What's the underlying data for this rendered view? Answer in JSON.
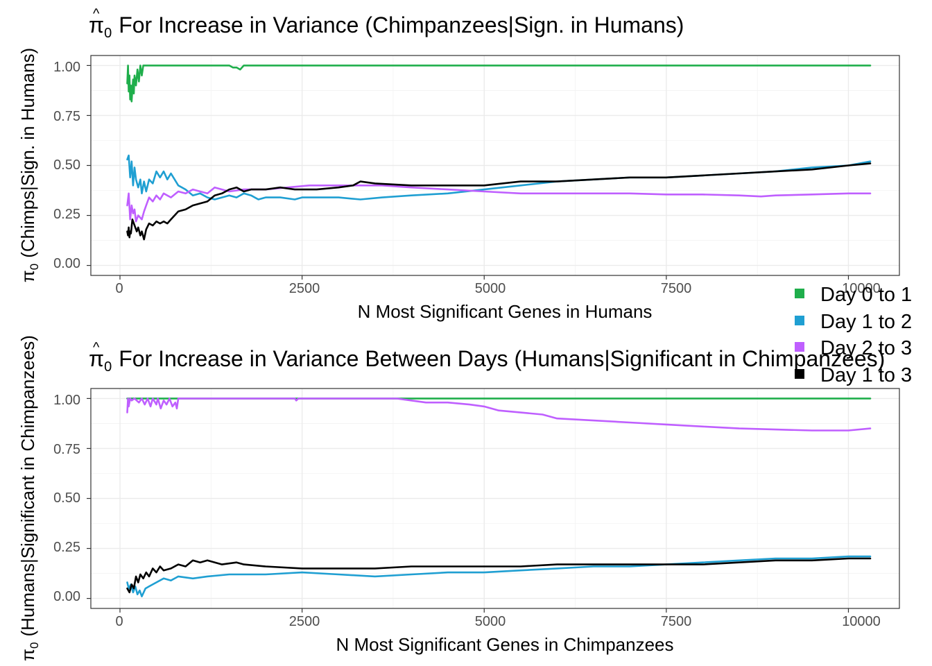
{
  "colors": {
    "day0to1": "#1fae4b",
    "day1to2": "#1f9fd2",
    "day2to3": "#bf5fff",
    "day1to3": "#000000"
  },
  "legend": [
    {
      "label": "Day 0 to 1",
      "color": "#1fae4b"
    },
    {
      "label": "Day 1 to 2",
      "color": "#1f9fd2"
    },
    {
      "label": "Day 2 to 3",
      "color": "#bf5fff"
    },
    {
      "label": "Day 1 to 3",
      "color": "#000000"
    }
  ],
  "chart_data": [
    {
      "type": "line",
      "title": {
        "hat_symbol": "π",
        "subscript": "0",
        "text": "For Increase in Variance (Chimpanzees|Sign. in Humans)"
      },
      "xlabel": "N Most Significant Genes in Humans",
      "ylabel": {
        "hat_symbol": "π",
        "subscript": "0",
        "text": "(Chimps|Sign. in Humans)"
      },
      "xlim": [
        -400,
        10700
      ],
      "ylim": [
        -0.05,
        1.05
      ],
      "xticks": [
        0,
        2500,
        5000,
        7500,
        10000
      ],
      "xtick_labels": [
        "0",
        "2500",
        "5000",
        "7500",
        "10000"
      ],
      "yticks": [
        0,
        0.25,
        0.5,
        0.75,
        1
      ],
      "ytick_labels": [
        "0.00",
        "0.25",
        "0.50",
        "0.75",
        "1.00"
      ],
      "grid": true,
      "series": [
        {
          "name": "Day 0 to 1",
          "color": "#1fae4b",
          "x": [
            100,
            110,
            120,
            130,
            140,
            150,
            160,
            170,
            180,
            190,
            200,
            220,
            240,
            260,
            280,
            300,
            320,
            1500,
            1550,
            1600,
            1650,
            1700,
            10300
          ],
          "y": [
            0.91,
            1.0,
            0.87,
            0.95,
            0.83,
            0.9,
            0.82,
            0.88,
            0.93,
            0.86,
            0.95,
            0.9,
            0.98,
            0.92,
            1.0,
            0.95,
            1.0,
            1.0,
            0.99,
            0.99,
            0.98,
            1.0,
            1.0
          ]
        },
        {
          "name": "Day 1 to 2",
          "color": "#1f9fd2",
          "x": [
            100,
            120,
            140,
            160,
            180,
            200,
            220,
            250,
            280,
            300,
            330,
            360,
            400,
            450,
            500,
            550,
            600,
            650,
            700,
            800,
            900,
            1000,
            1100,
            1200,
            1300,
            1400,
            1500,
            1600,
            1700,
            1800,
            1900,
            2000,
            2200,
            2400,
            2500,
            2700,
            3000,
            3300,
            3600,
            4000,
            4500,
            5000,
            5500,
            6000,
            6500,
            7000,
            7500,
            8000,
            8500,
            9000,
            9500,
            10000,
            10300
          ],
          "y": [
            0.53,
            0.55,
            0.44,
            0.52,
            0.4,
            0.49,
            0.43,
            0.39,
            0.43,
            0.36,
            0.42,
            0.37,
            0.43,
            0.41,
            0.47,
            0.44,
            0.47,
            0.43,
            0.46,
            0.4,
            0.38,
            0.35,
            0.36,
            0.34,
            0.33,
            0.34,
            0.35,
            0.34,
            0.36,
            0.35,
            0.33,
            0.34,
            0.34,
            0.33,
            0.34,
            0.34,
            0.34,
            0.33,
            0.34,
            0.35,
            0.36,
            0.38,
            0.4,
            0.42,
            0.43,
            0.44,
            0.44,
            0.45,
            0.46,
            0.47,
            0.49,
            0.5,
            0.52
          ]
        },
        {
          "name": "Day 2 to 3",
          "color": "#bf5fff",
          "x": [
            100,
            120,
            140,
            160,
            180,
            200,
            220,
            250,
            300,
            330,
            360,
            400,
            450,
            500,
            550,
            600,
            700,
            800,
            900,
            1000,
            1100,
            1200,
            1300,
            1400,
            1500,
            1700,
            2000,
            2300,
            2600,
            3000,
            3300,
            3600,
            4000,
            4500,
            5000,
            5500,
            6000,
            6500,
            7000,
            7500,
            8000,
            8500,
            8800,
            9000,
            9500,
            10000,
            10300
          ],
          "y": [
            0.3,
            0.36,
            0.23,
            0.3,
            0.26,
            0.28,
            0.22,
            0.25,
            0.23,
            0.27,
            0.3,
            0.34,
            0.32,
            0.35,
            0.33,
            0.36,
            0.34,
            0.37,
            0.36,
            0.38,
            0.37,
            0.36,
            0.39,
            0.38,
            0.37,
            0.38,
            0.38,
            0.39,
            0.4,
            0.4,
            0.4,
            0.4,
            0.39,
            0.38,
            0.37,
            0.36,
            0.36,
            0.36,
            0.36,
            0.355,
            0.355,
            0.35,
            0.345,
            0.35,
            0.355,
            0.36,
            0.36
          ]
        },
        {
          "name": "Day 1 to 3",
          "color": "#000000",
          "x": [
            100,
            110,
            120,
            130,
            140,
            150,
            170,
            190,
            210,
            230,
            250,
            280,
            300,
            330,
            360,
            400,
            450,
            500,
            550,
            600,
            650,
            700,
            750,
            800,
            900,
            1000,
            1100,
            1200,
            1300,
            1400,
            1500,
            1600,
            1700,
            1800,
            2000,
            2200,
            2400,
            2700,
            3000,
            3200,
            3300,
            3500,
            4000,
            4500,
            5000,
            5500,
            6000,
            6500,
            7000,
            7500,
            8000,
            8500,
            9000,
            9500,
            10000,
            10300
          ],
          "y": [
            0.17,
            0.15,
            0.19,
            0.14,
            0.17,
            0.16,
            0.23,
            0.21,
            0.19,
            0.17,
            0.19,
            0.15,
            0.17,
            0.13,
            0.18,
            0.21,
            0.2,
            0.22,
            0.21,
            0.22,
            0.21,
            0.23,
            0.25,
            0.27,
            0.28,
            0.3,
            0.31,
            0.32,
            0.35,
            0.36,
            0.38,
            0.39,
            0.37,
            0.38,
            0.38,
            0.39,
            0.38,
            0.38,
            0.39,
            0.4,
            0.42,
            0.41,
            0.4,
            0.4,
            0.4,
            0.42,
            0.42,
            0.43,
            0.44,
            0.44,
            0.45,
            0.46,
            0.47,
            0.48,
            0.5,
            0.51
          ]
        }
      ]
    },
    {
      "type": "line",
      "title": {
        "hat_symbol": "π",
        "subscript": "0",
        "text": "For Increase in Variance Between Days (Humans|Significant in Chimpanzees)"
      },
      "xlabel": "N Most Significant Genes in Chimpanzees",
      "ylabel": {
        "hat_symbol": "π",
        "subscript": "0",
        "text": "(Humans|Significant in Chimpanzees)"
      },
      "xlim": [
        -400,
        10700
      ],
      "ylim": [
        -0.05,
        1.05
      ],
      "xticks": [
        0,
        2500,
        5000,
        7500,
        10000
      ],
      "xtick_labels": [
        "0",
        "2500",
        "5000",
        "7500",
        "10000"
      ],
      "yticks": [
        0,
        0.25,
        0.5,
        0.75,
        1
      ],
      "ytick_labels": [
        "0.00",
        "0.25",
        "0.50",
        "0.75",
        "1.00"
      ],
      "grid": true,
      "series": [
        {
          "name": "Day 0 to 1",
          "color": "#1fae4b",
          "x": [
            100,
            10300
          ],
          "y": [
            1.0,
            1.0
          ]
        },
        {
          "name": "Day 2 to 3",
          "color": "#bf5fff",
          "x": [
            100,
            110,
            120,
            140,
            160,
            200,
            260,
            300,
            340,
            380,
            420,
            450,
            500,
            520,
            560,
            600,
            640,
            680,
            720,
            760,
            780,
            800,
            2400,
            2420,
            2450,
            3800,
            4000,
            4200,
            4500,
            4800,
            5000,
            5200,
            5500,
            5800,
            6000,
            6500,
            7000,
            7500,
            8000,
            8500,
            9000,
            9500,
            10000,
            10300
          ],
          "y": [
            0.93,
            1.0,
            0.96,
            1.0,
            0.99,
            1.0,
            0.98,
            1.0,
            0.97,
            1.0,
            0.96,
            1.0,
            0.97,
            1.0,
            0.95,
            0.99,
            0.97,
            1.0,
            0.96,
            0.98,
            0.95,
            1.0,
            1.0,
            0.99,
            1.0,
            1.0,
            0.99,
            0.98,
            0.98,
            0.97,
            0.96,
            0.94,
            0.93,
            0.92,
            0.9,
            0.89,
            0.88,
            0.87,
            0.86,
            0.85,
            0.845,
            0.84,
            0.84,
            0.85
          ]
        },
        {
          "name": "Day 1 to 2",
          "color": "#1f9fd2",
          "x": [
            100,
            120,
            150,
            180,
            210,
            240,
            270,
            300,
            350,
            400,
            500,
            600,
            700,
            800,
            1000,
            1200,
            1500,
            2000,
            2500,
            3000,
            3500,
            4000,
            4500,
            5000,
            5500,
            6000,
            6500,
            7000,
            7500,
            8000,
            8500,
            9000,
            9500,
            10000,
            10300
          ],
          "y": [
            0.08,
            0.05,
            0.07,
            0.03,
            0.06,
            0.02,
            0.04,
            0.01,
            0.05,
            0.06,
            0.08,
            0.1,
            0.09,
            0.11,
            0.1,
            0.11,
            0.12,
            0.12,
            0.13,
            0.12,
            0.11,
            0.12,
            0.13,
            0.13,
            0.14,
            0.15,
            0.16,
            0.16,
            0.17,
            0.18,
            0.19,
            0.2,
            0.2,
            0.21,
            0.21
          ]
        },
        {
          "name": "Day 1 to 3",
          "color": "#000000",
          "x": [
            100,
            130,
            160,
            190,
            220,
            250,
            280,
            320,
            360,
            400,
            450,
            500,
            550,
            600,
            700,
            800,
            900,
            1000,
            1100,
            1200,
            1400,
            1600,
            1700,
            2000,
            2500,
            3000,
            3500,
            4000,
            4500,
            5000,
            5500,
            6000,
            6500,
            7000,
            7500,
            8000,
            8500,
            9000,
            9500,
            10000,
            10300
          ],
          "y": [
            0.05,
            0.03,
            0.07,
            0.05,
            0.11,
            0.08,
            0.12,
            0.1,
            0.13,
            0.11,
            0.15,
            0.13,
            0.16,
            0.14,
            0.15,
            0.17,
            0.16,
            0.19,
            0.18,
            0.19,
            0.17,
            0.18,
            0.17,
            0.16,
            0.15,
            0.15,
            0.15,
            0.16,
            0.16,
            0.16,
            0.16,
            0.17,
            0.17,
            0.17,
            0.17,
            0.17,
            0.18,
            0.19,
            0.19,
            0.2,
            0.2
          ]
        }
      ]
    }
  ]
}
